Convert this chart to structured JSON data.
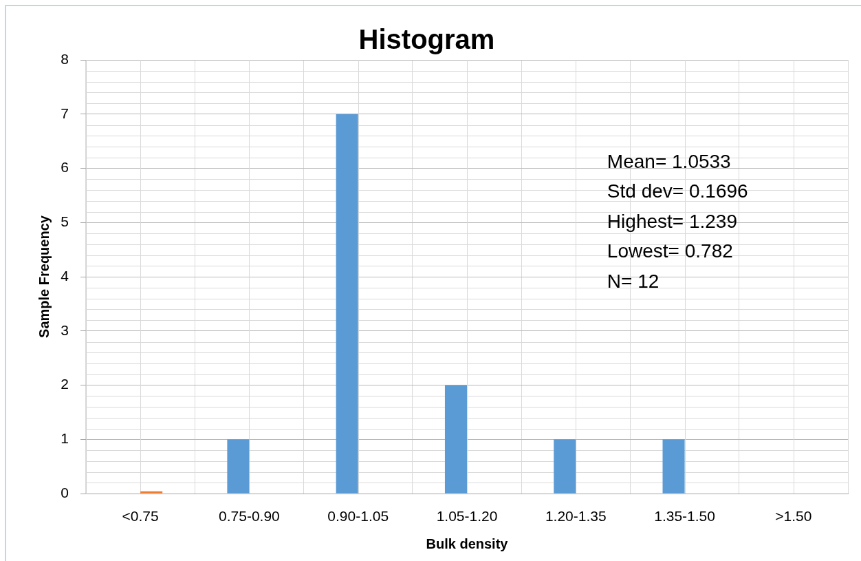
{
  "chart_data": {
    "type": "bar",
    "title": "Histogram",
    "xlabel": "Bulk density",
    "ylabel": "Sample Frequency",
    "categories": [
      "<0.75",
      "0.75-0.90",
      "0.90-1.05",
      "1.05-1.20",
      "1.20-1.35",
      "1.35-1.50",
      ">1.50"
    ],
    "series": [
      {
        "color": "#5b9bd5",
        "values": [
          0,
          1,
          7,
          2,
          1,
          1,
          0
        ]
      },
      {
        "color": "#ed7d31",
        "values": [
          0.04,
          0,
          0,
          0,
          0,
          0,
          0
        ]
      }
    ],
    "ylim": [
      0,
      8
    ],
    "yticks": [
      0,
      1,
      2,
      3,
      4,
      5,
      6,
      7,
      8
    ],
    "grid": true,
    "annotations": [
      "Mean= 1.0533",
      "Std dev= 0.1696",
      "Highest= 1.239",
      "Lowest= 0.782",
      "N= 12"
    ]
  }
}
